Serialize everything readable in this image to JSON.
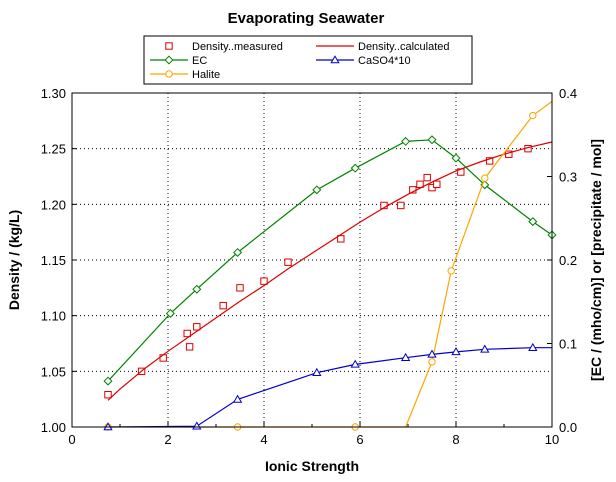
{
  "chart_data": {
    "type": "line",
    "title": "Evaporating Seawater",
    "xlabel": "Ionic Strength",
    "ylabel": "Density / (kg/L)",
    "y2label": "[EC / (mho/cm)] or [precipitate / mol]",
    "xlim": [
      0,
      10
    ],
    "ylim": [
      1.0,
      1.3
    ],
    "y2lim": [
      0,
      0.4
    ],
    "x_ticks": [
      "0",
      "2",
      "4",
      "6",
      "8",
      "10"
    ],
    "y_ticks": [
      "1.00",
      "1.05",
      "1.10",
      "1.15",
      "1.20",
      "1.25",
      "1.30"
    ],
    "y2_ticks": [
      "0.0",
      "0.1",
      "0.2",
      "0.3",
      "0.4"
    ],
    "grid": true,
    "legend_position": "top",
    "series": [
      {
        "name": "Density..measured",
        "axis": "left",
        "style": "markers",
        "marker": "square",
        "color": "#dd0000",
        "x": [
          0.75,
          1.45,
          1.9,
          2.4,
          2.45,
          2.6,
          3.15,
          3.5,
          4.0,
          4.5,
          5.6,
          6.5,
          6.85,
          7.1,
          7.25,
          7.4,
          7.5,
          7.6,
          8.1,
          8.7,
          9.1,
          9.5
        ],
        "y": [
          1.029,
          1.05,
          1.062,
          1.084,
          1.072,
          1.09,
          1.109,
          1.125,
          1.131,
          1.148,
          1.169,
          1.199,
          1.199,
          1.213,
          1.218,
          1.224,
          1.215,
          1.218,
          1.229,
          1.239,
          1.245,
          1.25
        ]
      },
      {
        "name": "Density..calculated",
        "axis": "left",
        "style": "line",
        "color": "#dd0000",
        "x": [
          0.75,
          1.0,
          1.5,
          2.0,
          2.5,
          3.0,
          3.5,
          4.0,
          4.5,
          5.0,
          5.5,
          6.0,
          6.5,
          7.0,
          7.5,
          8.0,
          8.5,
          9.0,
          9.5,
          10.0
        ],
        "y": [
          1.024,
          1.034,
          1.052,
          1.068,
          1.083,
          1.098,
          1.113,
          1.127,
          1.142,
          1.156,
          1.17,
          1.184,
          1.197,
          1.209,
          1.22,
          1.23,
          1.238,
          1.245,
          1.251,
          1.256
        ]
      },
      {
        "name": "EC",
        "axis": "right",
        "style": "line+markers",
        "marker": "diamond",
        "color": "#008000",
        "x": [
          0.75,
          2.05,
          2.6,
          3.45,
          5.1,
          5.9,
          6.95,
          7.5,
          8.0,
          8.6,
          9.6,
          10.0
        ],
        "y": [
          0.055,
          0.136,
          0.165,
          0.209,
          0.284,
          0.31,
          0.342,
          0.344,
          0.322,
          0.29,
          0.246,
          0.23
        ]
      },
      {
        "name": "Halite",
        "axis": "right",
        "style": "line+markers",
        "marker": "circle",
        "color": "#ffa500",
        "x": [
          0.75,
          3.45,
          5.9,
          6.95,
          7.5,
          7.9,
          8.6,
          9.6,
          10.0
        ],
        "y": [
          0.0,
          0.0,
          0.0,
          0.0,
          0.078,
          0.187,
          0.298,
          0.373,
          0.39
        ],
        "marker_x": [
          0.75,
          3.45,
          5.9,
          7.5,
          7.9,
          8.6,
          9.6
        ]
      },
      {
        "name": "CaSO4*10",
        "axis": "right",
        "style": "line+markers",
        "marker": "triangle",
        "color": "#0000cc",
        "x": [
          0.75,
          2.6,
          3.45,
          5.1,
          5.9,
          6.95,
          7.5,
          8.0,
          8.6,
          9.6,
          10.0
        ],
        "y": [
          0.0,
          0.001,
          0.033,
          0.065,
          0.075,
          0.083,
          0.087,
          0.09,
          0.093,
          0.095,
          0.095
        ],
        "marker_x": [
          0.75,
          2.6,
          3.45,
          5.1,
          5.9,
          6.95,
          7.5,
          8.0,
          8.6,
          9.6
        ]
      }
    ]
  }
}
